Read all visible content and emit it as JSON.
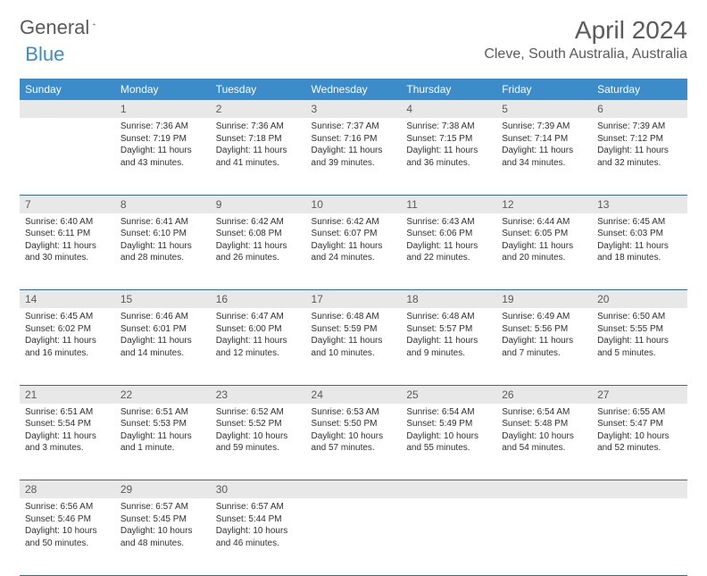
{
  "brand": {
    "part1": "General",
    "part2": "Blue"
  },
  "title": "April 2024",
  "location": "Cleve, South Australia, Australia",
  "colors": {
    "header_bg": "#3b8cc9",
    "header_text": "#ffffff",
    "daynum_bg": "#e8e8e8",
    "border": "#3b6a94",
    "text": "#303030",
    "muted": "#5a5a5a"
  },
  "weekdays": [
    "Sunday",
    "Monday",
    "Tuesday",
    "Wednesday",
    "Thursday",
    "Friday",
    "Saturday"
  ],
  "weeks": [
    [
      null,
      {
        "n": "1",
        "sunrise": "7:36 AM",
        "sunset": "7:19 PM",
        "daylight": "11 hours and 43 minutes."
      },
      {
        "n": "2",
        "sunrise": "7:36 AM",
        "sunset": "7:18 PM",
        "daylight": "11 hours and 41 minutes."
      },
      {
        "n": "3",
        "sunrise": "7:37 AM",
        "sunset": "7:16 PM",
        "daylight": "11 hours and 39 minutes."
      },
      {
        "n": "4",
        "sunrise": "7:38 AM",
        "sunset": "7:15 PM",
        "daylight": "11 hours and 36 minutes."
      },
      {
        "n": "5",
        "sunrise": "7:39 AM",
        "sunset": "7:14 PM",
        "daylight": "11 hours and 34 minutes."
      },
      {
        "n": "6",
        "sunrise": "7:39 AM",
        "sunset": "7:12 PM",
        "daylight": "11 hours and 32 minutes."
      }
    ],
    [
      {
        "n": "7",
        "sunrise": "6:40 AM",
        "sunset": "6:11 PM",
        "daylight": "11 hours and 30 minutes."
      },
      {
        "n": "8",
        "sunrise": "6:41 AM",
        "sunset": "6:10 PM",
        "daylight": "11 hours and 28 minutes."
      },
      {
        "n": "9",
        "sunrise": "6:42 AM",
        "sunset": "6:08 PM",
        "daylight": "11 hours and 26 minutes."
      },
      {
        "n": "10",
        "sunrise": "6:42 AM",
        "sunset": "6:07 PM",
        "daylight": "11 hours and 24 minutes."
      },
      {
        "n": "11",
        "sunrise": "6:43 AM",
        "sunset": "6:06 PM",
        "daylight": "11 hours and 22 minutes."
      },
      {
        "n": "12",
        "sunrise": "6:44 AM",
        "sunset": "6:05 PM",
        "daylight": "11 hours and 20 minutes."
      },
      {
        "n": "13",
        "sunrise": "6:45 AM",
        "sunset": "6:03 PM",
        "daylight": "11 hours and 18 minutes."
      }
    ],
    [
      {
        "n": "14",
        "sunrise": "6:45 AM",
        "sunset": "6:02 PM",
        "daylight": "11 hours and 16 minutes."
      },
      {
        "n": "15",
        "sunrise": "6:46 AM",
        "sunset": "6:01 PM",
        "daylight": "11 hours and 14 minutes."
      },
      {
        "n": "16",
        "sunrise": "6:47 AM",
        "sunset": "6:00 PM",
        "daylight": "11 hours and 12 minutes."
      },
      {
        "n": "17",
        "sunrise": "6:48 AM",
        "sunset": "5:59 PM",
        "daylight": "11 hours and 10 minutes."
      },
      {
        "n": "18",
        "sunrise": "6:48 AM",
        "sunset": "5:57 PM",
        "daylight": "11 hours and 9 minutes."
      },
      {
        "n": "19",
        "sunrise": "6:49 AM",
        "sunset": "5:56 PM",
        "daylight": "11 hours and 7 minutes."
      },
      {
        "n": "20",
        "sunrise": "6:50 AM",
        "sunset": "5:55 PM",
        "daylight": "11 hours and 5 minutes."
      }
    ],
    [
      {
        "n": "21",
        "sunrise": "6:51 AM",
        "sunset": "5:54 PM",
        "daylight": "11 hours and 3 minutes."
      },
      {
        "n": "22",
        "sunrise": "6:51 AM",
        "sunset": "5:53 PM",
        "daylight": "11 hours and 1 minute."
      },
      {
        "n": "23",
        "sunrise": "6:52 AM",
        "sunset": "5:52 PM",
        "daylight": "10 hours and 59 minutes."
      },
      {
        "n": "24",
        "sunrise": "6:53 AM",
        "sunset": "5:50 PM",
        "daylight": "10 hours and 57 minutes."
      },
      {
        "n": "25",
        "sunrise": "6:54 AM",
        "sunset": "5:49 PM",
        "daylight": "10 hours and 55 minutes."
      },
      {
        "n": "26",
        "sunrise": "6:54 AM",
        "sunset": "5:48 PM",
        "daylight": "10 hours and 54 minutes."
      },
      {
        "n": "27",
        "sunrise": "6:55 AM",
        "sunset": "5:47 PM",
        "daylight": "10 hours and 52 minutes."
      }
    ],
    [
      {
        "n": "28",
        "sunrise": "6:56 AM",
        "sunset": "5:46 PM",
        "daylight": "10 hours and 50 minutes."
      },
      {
        "n": "29",
        "sunrise": "6:57 AM",
        "sunset": "5:45 PM",
        "daylight": "10 hours and 48 minutes."
      },
      {
        "n": "30",
        "sunrise": "6:57 AM",
        "sunset": "5:44 PM",
        "daylight": "10 hours and 46 minutes."
      },
      null,
      null,
      null,
      null
    ]
  ],
  "labels": {
    "sunrise": "Sunrise:",
    "sunset": "Sunset:",
    "daylight": "Daylight:"
  }
}
